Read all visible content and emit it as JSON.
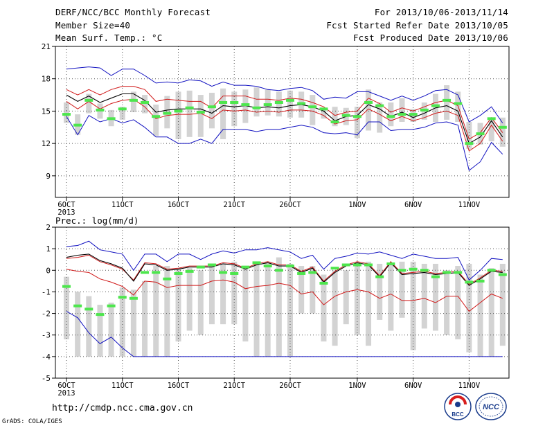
{
  "header": {
    "title": "DERF/NCC/BCC Monthly Forecast",
    "member": "Member Size=40",
    "variable": "Mean Surf. Temp.: °C",
    "period": "For 2013/10/06-2013/11/14",
    "refer": "Fcst Started Refer Date 2013/10/05",
    "produced": "Fcst Produced Date 2013/10/06"
  },
  "footer": {
    "url": "http://cmdp.ncc.cma.gov.cn",
    "credit": "GrADS: COLA/IGES",
    "logo_left_text": "BCC",
    "logo_right_text": "NCC"
  },
  "colors": {
    "box": "#d3d3d3",
    "median": "#4de64d",
    "mean": "#000000",
    "envelope_red": "#d01818",
    "envelope_blue": "#1010c0",
    "grid": "#555555"
  },
  "chart_data": [
    {
      "type": "box",
      "title": "Mean Surf. Temp.: °C",
      "xlabel": "",
      "ylabel": "",
      "x_tick_labels": [
        "6OCT",
        "11OCT",
        "16OCT",
        "21OCT",
        "26OCT",
        "1NOV",
        "6NOV",
        "11NOV"
      ],
      "x_tick_sublabel": "2013",
      "y_ticks": [
        9,
        12,
        15,
        18,
        21
      ],
      "ylim": [
        7,
        21
      ],
      "grid": true,
      "days": 40,
      "box_low": [
        13.9,
        12.8,
        14.8,
        14.3,
        13.6,
        14.2,
        14.9,
        14.8,
        12.7,
        13.4,
        12.4,
        12.6,
        12.6,
        13.4,
        12.4,
        13.6,
        13.9,
        14.5,
        14.6,
        14.5,
        14.4,
        14.4,
        13.7,
        14.3,
        13.6,
        13.7,
        12.5,
        13.2,
        13.0,
        13.6,
        14.0,
        14.0,
        14.2,
        14.0,
        14.2,
        14.0,
        11.5,
        11.9,
        12.2,
        11.7
      ],
      "box_high": [
        15.8,
        14.7,
        16.6,
        15.7,
        15.1,
        15.4,
        16.8,
        16.5,
        15.6,
        16.4,
        16.8,
        16.9,
        16.5,
        16.7,
        17.1,
        16.8,
        17.0,
        17.2,
        17.0,
        16.8,
        16.9,
        16.8,
        16.5,
        15.3,
        15.4,
        15.3,
        15.4,
        17.0,
        15.8,
        15.8,
        16.2,
        15.2,
        15.8,
        16.6,
        17.4,
        16.8,
        14.0,
        13.9,
        14.4,
        14.4
      ],
      "median": [
        14.7,
        13.7,
        16.0,
        15.1,
        14.3,
        15.2,
        16.0,
        15.8,
        14.5,
        14.8,
        15.0,
        15.3,
        14.9,
        15.4,
        15.8,
        15.8,
        15.6,
        15.3,
        15.6,
        15.8,
        16.0,
        15.7,
        15.4,
        15.2,
        14.0,
        14.6,
        14.5,
        15.8,
        15.5,
        14.5,
        14.7,
        14.7,
        15.1,
        15.5,
        16.0,
        15.7,
        12.0,
        12.9,
        14.3,
        13.5
      ],
      "mean": [
        16.5,
        15.9,
        16.4,
        15.8,
        16.2,
        16.6,
        16.6,
        16.0,
        14.9,
        15.1,
        15.2,
        15.2,
        15.2,
        14.8,
        15.5,
        15.4,
        15.5,
        15.3,
        15.4,
        15.3,
        15.5,
        15.6,
        15.4,
        15.0,
        14.1,
        14.5,
        14.6,
        15.6,
        15.2,
        14.5,
        14.9,
        14.4,
        14.8,
        15.3,
        15.5,
        15.0,
        12.0,
        12.6,
        14.1,
        12.6
      ],
      "upper": [
        17.0,
        16.5,
        17.0,
        16.5,
        17.0,
        17.3,
        17.3,
        17.0,
        15.9,
        16.1,
        16.0,
        15.9,
        15.9,
        15.3,
        16.4,
        16.4,
        16.4,
        16.1,
        16.1,
        16.0,
        16.2,
        16.1,
        15.8,
        15.4,
        14.6,
        14.9,
        15.0,
        16.2,
        15.7,
        14.9,
        15.3,
        15.0,
        15.4,
        15.8,
        16.0,
        15.5,
        12.4,
        13.0,
        14.4,
        13.0
      ],
      "lower": [
        15.9,
        15.2,
        15.9,
        15.2,
        15.7,
        16.0,
        16.1,
        15.4,
        14.3,
        14.6,
        14.7,
        14.7,
        14.8,
        14.3,
        15.1,
        15.0,
        15.1,
        14.9,
        15.0,
        14.9,
        15.1,
        15.1,
        15.0,
        14.6,
        13.8,
        14.1,
        14.2,
        15.2,
        14.7,
        14.1,
        14.5,
        14.1,
        14.4,
        14.8,
        15.0,
        14.6,
        11.3,
        12.0,
        13.7,
        12.2
      ],
      "max": [
        18.9,
        19.0,
        19.1,
        19.0,
        18.3,
        18.9,
        18.9,
        18.3,
        17.6,
        17.7,
        17.6,
        17.9,
        17.8,
        17.3,
        17.7,
        17.4,
        17.4,
        17.3,
        17.0,
        16.9,
        17.1,
        17.2,
        16.9,
        16.1,
        16.3,
        16.2,
        16.8,
        16.8,
        16.4,
        16.0,
        16.4,
        16.0,
        16.4,
        16.9,
        17.0,
        16.5,
        14.0,
        14.6,
        15.4,
        13.9
      ],
      "min": [
        14.5,
        12.8,
        14.6,
        14.0,
        14.3,
        13.9,
        14.2,
        13.5,
        12.6,
        12.6,
        12.0,
        12.0,
        12.4,
        12.0,
        13.3,
        13.3,
        13.3,
        13.1,
        13.3,
        13.3,
        13.5,
        13.7,
        13.5,
        13.0,
        12.9,
        13.0,
        12.8,
        14.0,
        14.0,
        13.2,
        13.3,
        13.3,
        13.5,
        13.9,
        14.0,
        13.7,
        9.5,
        10.3,
        12.1,
        11.0
      ]
    },
    {
      "type": "box",
      "title": "Prec.: log(mm/d)",
      "xlabel": "",
      "ylabel": "",
      "x_tick_labels": [
        "6OCT",
        "11OCT",
        "16OCT",
        "21OCT",
        "26OCT",
        "1NOV",
        "6NOV",
        "11NOV"
      ],
      "x_tick_sublabel": "2013",
      "y_ticks": [
        -5,
        -4,
        -3,
        -2,
        -1,
        0,
        1,
        2
      ],
      "ylim": [
        -5,
        2
      ],
      "grid": true,
      "days": 40,
      "box_low": [
        -3.2,
        -4.0,
        -4.0,
        -4.0,
        -4.0,
        -4.0,
        -4.0,
        -4.0,
        -4.0,
        -4.0,
        -3.3,
        -2.8,
        -3.0,
        -2.5,
        -2.5,
        -2.5,
        -3.3,
        -4.0,
        -4.0,
        -4.0,
        -4.0,
        -2.0,
        -2.0,
        -3.3,
        -3.5,
        -2.5,
        -3.0,
        -3.5,
        -2.3,
        -2.8,
        -2.2,
        -3.7,
        -2.7,
        -2.8,
        -3.0,
        -3.2,
        -3.8,
        -4.0,
        -4.0,
        -3.5
      ],
      "box_high": [
        -0.3,
        -1.0,
        -1.2,
        -1.6,
        -1.5,
        -0.8,
        -0.9,
        -0.5,
        0.2,
        0.2,
        0.1,
        0.1,
        0.0,
        0.2,
        0.3,
        0.4,
        0.2,
        0.3,
        0.4,
        0.6,
        0.3,
        0.2,
        0.2,
        -0.2,
        0.0,
        0.0,
        0.2,
        0.4,
        0.3,
        0.3,
        0.4,
        0.4,
        0.3,
        0.3,
        0.0,
        0.2,
        0.3,
        -0.2,
        0.1,
        0.3
      ],
      "median": [
        -0.75,
        -1.65,
        -1.8,
        -2.05,
        -1.65,
        -1.25,
        -1.3,
        -0.1,
        -0.1,
        -0.4,
        -0.15,
        -0.05,
        0.15,
        0.25,
        -0.1,
        -0.15,
        0.15,
        0.35,
        0.2,
        0.0,
        0.2,
        -0.15,
        -0.1,
        -0.6,
        0.1,
        0.25,
        0.25,
        0.25,
        -0.3,
        0.3,
        0.0,
        0.05,
        0.0,
        -0.3,
        -0.1,
        -0.1,
        -0.55,
        -0.5,
        0.0,
        -0.2
      ],
      "mean": [
        0.6,
        0.7,
        0.75,
        0.45,
        0.3,
        0.1,
        -0.5,
        0.3,
        0.25,
        0.0,
        0.05,
        0.15,
        0.15,
        0.15,
        0.3,
        0.25,
        0.05,
        0.25,
        0.35,
        0.2,
        0.2,
        -0.1,
        0.1,
        -0.55,
        -0.1,
        0.2,
        0.35,
        0.25,
        -0.3,
        0.35,
        -0.2,
        -0.15,
        -0.1,
        -0.2,
        -0.15,
        -0.1,
        -0.7,
        -0.4,
        -0.05,
        -0.1
      ],
      "upper": [
        0.55,
        0.6,
        0.7,
        0.4,
        0.25,
        0.05,
        -0.45,
        0.35,
        0.3,
        0.05,
        0.1,
        0.2,
        0.2,
        0.2,
        0.35,
        0.3,
        0.1,
        0.3,
        0.4,
        0.25,
        0.25,
        -0.05,
        0.15,
        -0.5,
        -0.05,
        0.25,
        0.4,
        0.3,
        -0.25,
        0.4,
        -0.15,
        -0.1,
        -0.05,
        -0.15,
        -0.1,
        -0.05,
        -0.65,
        -0.35,
        0.0,
        -0.05
      ],
      "lower": [
        0.05,
        -0.05,
        -0.1,
        -0.4,
        -0.55,
        -0.75,
        -1.15,
        -0.5,
        -0.55,
        -0.8,
        -0.7,
        -0.7,
        -0.7,
        -0.5,
        -0.45,
        -0.55,
        -0.85,
        -0.75,
        -0.7,
        -0.6,
        -0.7,
        -1.1,
        -1.0,
        -1.6,
        -1.2,
        -1.0,
        -0.9,
        -1.0,
        -1.3,
        -1.1,
        -1.4,
        -1.4,
        -1.3,
        -1.5,
        -1.2,
        -1.2,
        -1.9,
        -1.5,
        -1.1,
        -1.3
      ],
      "max": [
        1.1,
        1.15,
        1.35,
        0.95,
        0.85,
        0.75,
        0.0,
        0.75,
        0.75,
        0.4,
        0.75,
        0.75,
        0.5,
        0.75,
        0.9,
        0.8,
        0.95,
        0.95,
        1.05,
        0.95,
        0.85,
        0.55,
        0.7,
        0.05,
        0.55,
        0.65,
        0.8,
        0.75,
        0.85,
        0.7,
        0.55,
        0.75,
        0.65,
        0.55,
        0.55,
        0.6,
        -0.45,
        0.0,
        0.55,
        0.5
      ],
      "min": [
        -1.9,
        -2.2,
        -2.9,
        -3.4,
        -3.1,
        -3.6,
        -4.0,
        -4.0,
        -4.0,
        -4.0,
        -4.0,
        -4.0,
        -4.0,
        -4.0,
        -4.0,
        -4.0,
        -4.0,
        -4.0,
        -4.0,
        -4.0,
        -4.0,
        -4.0,
        -4.0,
        -4.0,
        -4.0,
        -4.0,
        -4.0,
        -4.0,
        -4.0,
        -4.0,
        -4.0,
        -4.0,
        -4.0,
        -4.0,
        -4.0,
        -4.0,
        -4.0,
        -4.0,
        -4.0,
        -4.0
      ]
    }
  ]
}
